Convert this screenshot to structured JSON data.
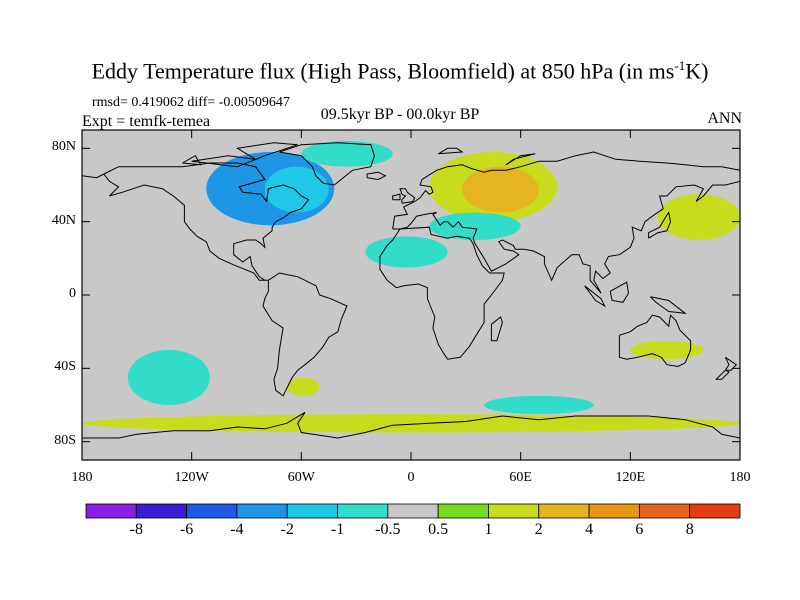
{
  "title": {
    "main": "Eddy Temperature flux (High Pass, Bloomfield) at 850 hPa (in ms",
    "sup": "-1",
    "unit_end": "K)"
  },
  "stats": {
    "rmsd_label": "rmsd= 0.419062 diff= -0.00509647",
    "expt": "Expt = temfk-temea",
    "period": "09.5kyr BP - 00.0kyr BP",
    "season": "ANN"
  },
  "map": {
    "projection": "equirectangular",
    "lon_range": [
      -180,
      180
    ],
    "lat_range": [
      -90,
      90
    ],
    "background_color": "#c8c8c8",
    "lat_ticks": [
      "80N",
      "40N",
      "0",
      "40S",
      "80S"
    ],
    "lon_ticks": [
      "180",
      "120W",
      "60W",
      "0",
      "60E",
      "120E",
      "180"
    ],
    "anomaly_regions": [
      {
        "region": "Hudson Bay / NE Canada",
        "lon": [
          -112,
          -42
        ],
        "lat": [
          38,
          78
        ],
        "value": -4
      },
      {
        "region": "Labrador / N Atlantic",
        "lon": [
          -80,
          -45
        ],
        "lat": [
          45,
          70
        ],
        "value": -2
      },
      {
        "region": "Greenland coast",
        "lon": [
          -60,
          -10
        ],
        "lat": [
          70,
          84
        ],
        "value": -1
      },
      {
        "region": "Scandinavia / W Russia",
        "lon": [
          10,
          80
        ],
        "lat": [
          40,
          78
        ],
        "value": 1
      },
      {
        "region": "W Russia core",
        "lon": [
          28,
          70
        ],
        "lat": [
          45,
          70
        ],
        "value": 2
      },
      {
        "region": "Mediterranean / Middle East",
        "lon": [
          10,
          60
        ],
        "lat": [
          30,
          45
        ],
        "value": -1
      },
      {
        "region": "N Africa",
        "lon": [
          -25,
          20
        ],
        "lat": [
          15,
          32
        ],
        "value": -1
      },
      {
        "region": "NW Pacific",
        "lon": [
          135,
          180
        ],
        "lat": [
          30,
          55
        ],
        "value": 1
      },
      {
        "region": "SE Pacific",
        "lon": [
          -155,
          -110
        ],
        "lat": [
          -60,
          -30
        ],
        "value": -1
      },
      {
        "region": "S Atlantic",
        "lon": [
          -68,
          -50
        ],
        "lat": [
          -55,
          -45
        ],
        "value": 1
      },
      {
        "region": "Southern Ocean",
        "lon": [
          -180,
          180
        ],
        "lat": [
          -75,
          -65
        ],
        "value": 1
      },
      {
        "region": "S Indian Ocean",
        "lon": [
          40,
          100
        ],
        "lat": [
          -65,
          -55
        ],
        "value": -1
      },
      {
        "region": "Tasman Sea",
        "lon": [
          120,
          160
        ],
        "lat": [
          -35,
          -25
        ],
        "value": 1
      }
    ]
  },
  "colorbar": {
    "labels": [
      "-8",
      "-6",
      "-4",
      "-2",
      "-1",
      "-0.5",
      "0.5",
      "1",
      "2",
      "4",
      "6",
      "8"
    ],
    "colors": [
      "#8a1ee6",
      "#3c1ed2",
      "#1e5ae6",
      "#1e96e6",
      "#1ec8e6",
      "#32dcc8",
      "#c8c8c8",
      "#78dc1e",
      "#c8dc1e",
      "#e6b41e",
      "#e69614",
      "#e6641e",
      "#e63c14"
    ]
  }
}
